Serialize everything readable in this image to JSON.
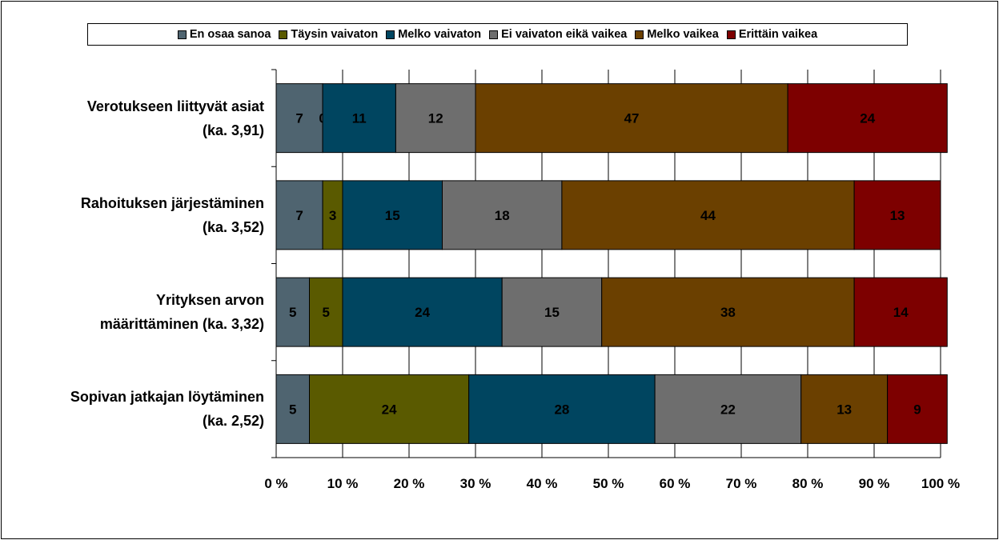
{
  "chart_data": {
    "type": "bar",
    "orientation": "horizontal",
    "stacked": true,
    "percent_stacked": true,
    "categories": [
      "Verotukseen liittyvät asiat (ka. 3,91)",
      "Rahoituksen järjestäminen (ka. 3,52)",
      "Yrityksen arvon määrittäminen (ka. 3,32)",
      "Sopivan jatkajan löytäminen (ka. 2,52)"
    ],
    "category_lines": [
      [
        "Verotukseen liittyvät asiat",
        "(ka. 3,91)"
      ],
      [
        "Rahoituksen järjestäminen",
        "(ka. 3,52)"
      ],
      [
        "Yrityksen arvon",
        "määrittäminen (ka. 3,32)"
      ],
      [
        "Sopivan jatkajan löytäminen",
        "(ka. 2,52)"
      ]
    ],
    "series": [
      {
        "name": "En osaa sanoa",
        "color": "#4f6470",
        "values": [
          7,
          7,
          5,
          5
        ]
      },
      {
        "name": "Täysin vaivaton",
        "color": "#5a5a00",
        "values": [
          0,
          3,
          5,
          24
        ]
      },
      {
        "name": "Melko vaivaton",
        "color": "#004560",
        "values": [
          11,
          15,
          24,
          28
        ]
      },
      {
        "name": "Ei vaivaton eikä vaikea",
        "color": "#6e6e6e",
        "values": [
          12,
          18,
          15,
          22
        ]
      },
      {
        "name": "Melko vaikea",
        "color": "#6b4000",
        "values": [
          47,
          44,
          38,
          13
        ]
      },
      {
        "name": "Erittäin vaikea",
        "color": "#7d0000",
        "values": [
          24,
          13,
          14,
          9
        ]
      }
    ],
    "x_ticks": [
      "0 %",
      "10 %",
      "20 %",
      "30 %",
      "40 %",
      "50 %",
      "60 %",
      "70 %",
      "80 %",
      "90 %",
      "100 %"
    ],
    "xlim": [
      0,
      100
    ],
    "grid": "vertical",
    "legend_position": "top"
  }
}
